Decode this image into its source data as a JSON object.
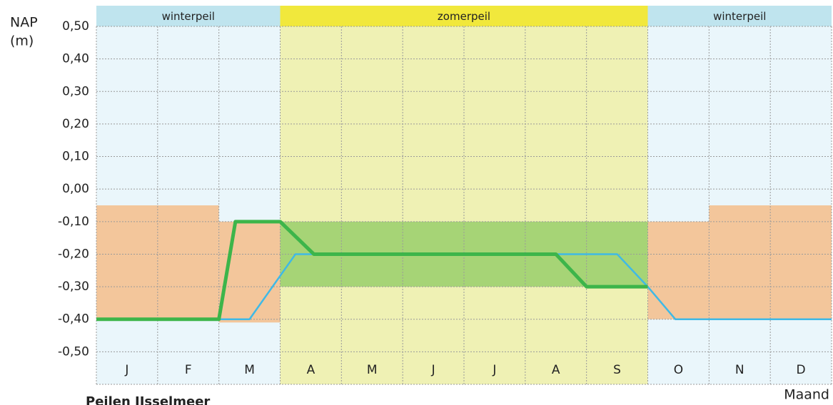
{
  "chart_data": {
    "type": "line",
    "title": "Peilen IJsselmeer",
    "y_label": [
      "NAP",
      "(m)"
    ],
    "x_label": "Maand",
    "categories": [
      "J",
      "F",
      "M",
      "A",
      "M",
      "J",
      "J",
      "A",
      "S",
      "O",
      "N",
      "D"
    ],
    "xlim": [
      0,
      12
    ],
    "ylim": [
      -0.6,
      0.5
    ],
    "yticks": [
      {
        "value": 0.5,
        "label": "0,50"
      },
      {
        "value": 0.4,
        "label": "0,40"
      },
      {
        "value": 0.3,
        "label": "0,30"
      },
      {
        "value": 0.2,
        "label": "0,20"
      },
      {
        "value": 0.1,
        "label": "0,10"
      },
      {
        "value": 0,
        "label": "0,00"
      },
      {
        "value": -0.1,
        "label": "-0,10"
      },
      {
        "value": -0.2,
        "label": "-0,20"
      },
      {
        "value": -0.3,
        "label": "-0,30"
      },
      {
        "value": -0.4,
        "label": "-0,40"
      },
      {
        "value": -0.5,
        "label": "-0,50"
      }
    ],
    "grid": true,
    "periods": [
      {
        "label": "winterpeil",
        "start": 0,
        "end": 3,
        "color": "#bfe4ee",
        "background": "#eaf6fb"
      },
      {
        "label": "zomerpeil",
        "start": 3,
        "end": 9,
        "color": "#f1e83c",
        "background": "#eff1b4"
      },
      {
        "label": "winterpeil",
        "start": 9,
        "end": 12,
        "color": "#bfe4ee",
        "background": "#eaf6fb"
      }
    ],
    "areas": [
      {
        "start": 0,
        "end": 2,
        "low": -0.4,
        "high": -0.05,
        "color": "#f4c190"
      },
      {
        "start": 2,
        "end": 3,
        "low": -0.41,
        "high": -0.1,
        "color": "#f4c190"
      },
      {
        "start": 3,
        "end": 9,
        "low": -0.3,
        "high": -0.1,
        "color": "#9dd06f"
      },
      {
        "start": 9,
        "end": 10,
        "low": -0.4,
        "high": -0.1,
        "color": "#f4c190"
      },
      {
        "start": 10,
        "end": 12,
        "low": -0.4,
        "high": -0.05,
        "color": "#f4c190"
      }
    ],
    "series": [
      {
        "color": "#3fb9e6",
        "width": 2.5,
        "x": [
          0,
          2.5,
          3.25,
          8.5,
          9,
          9.45,
          12
        ],
        "values": [
          -0.4,
          -0.4,
          -0.2,
          -0.2,
          -0.3,
          -0.4,
          -0.4
        ]
      },
      {
        "color": "#3db54a",
        "width": 5,
        "x": [
          0,
          2,
          2.27,
          3,
          3.55,
          7.5,
          8,
          9
        ],
        "values": [
          -0.4,
          -0.4,
          -0.1,
          -0.1,
          -0.2,
          -0.2,
          -0.3,
          -0.3
        ]
      }
    ]
  }
}
